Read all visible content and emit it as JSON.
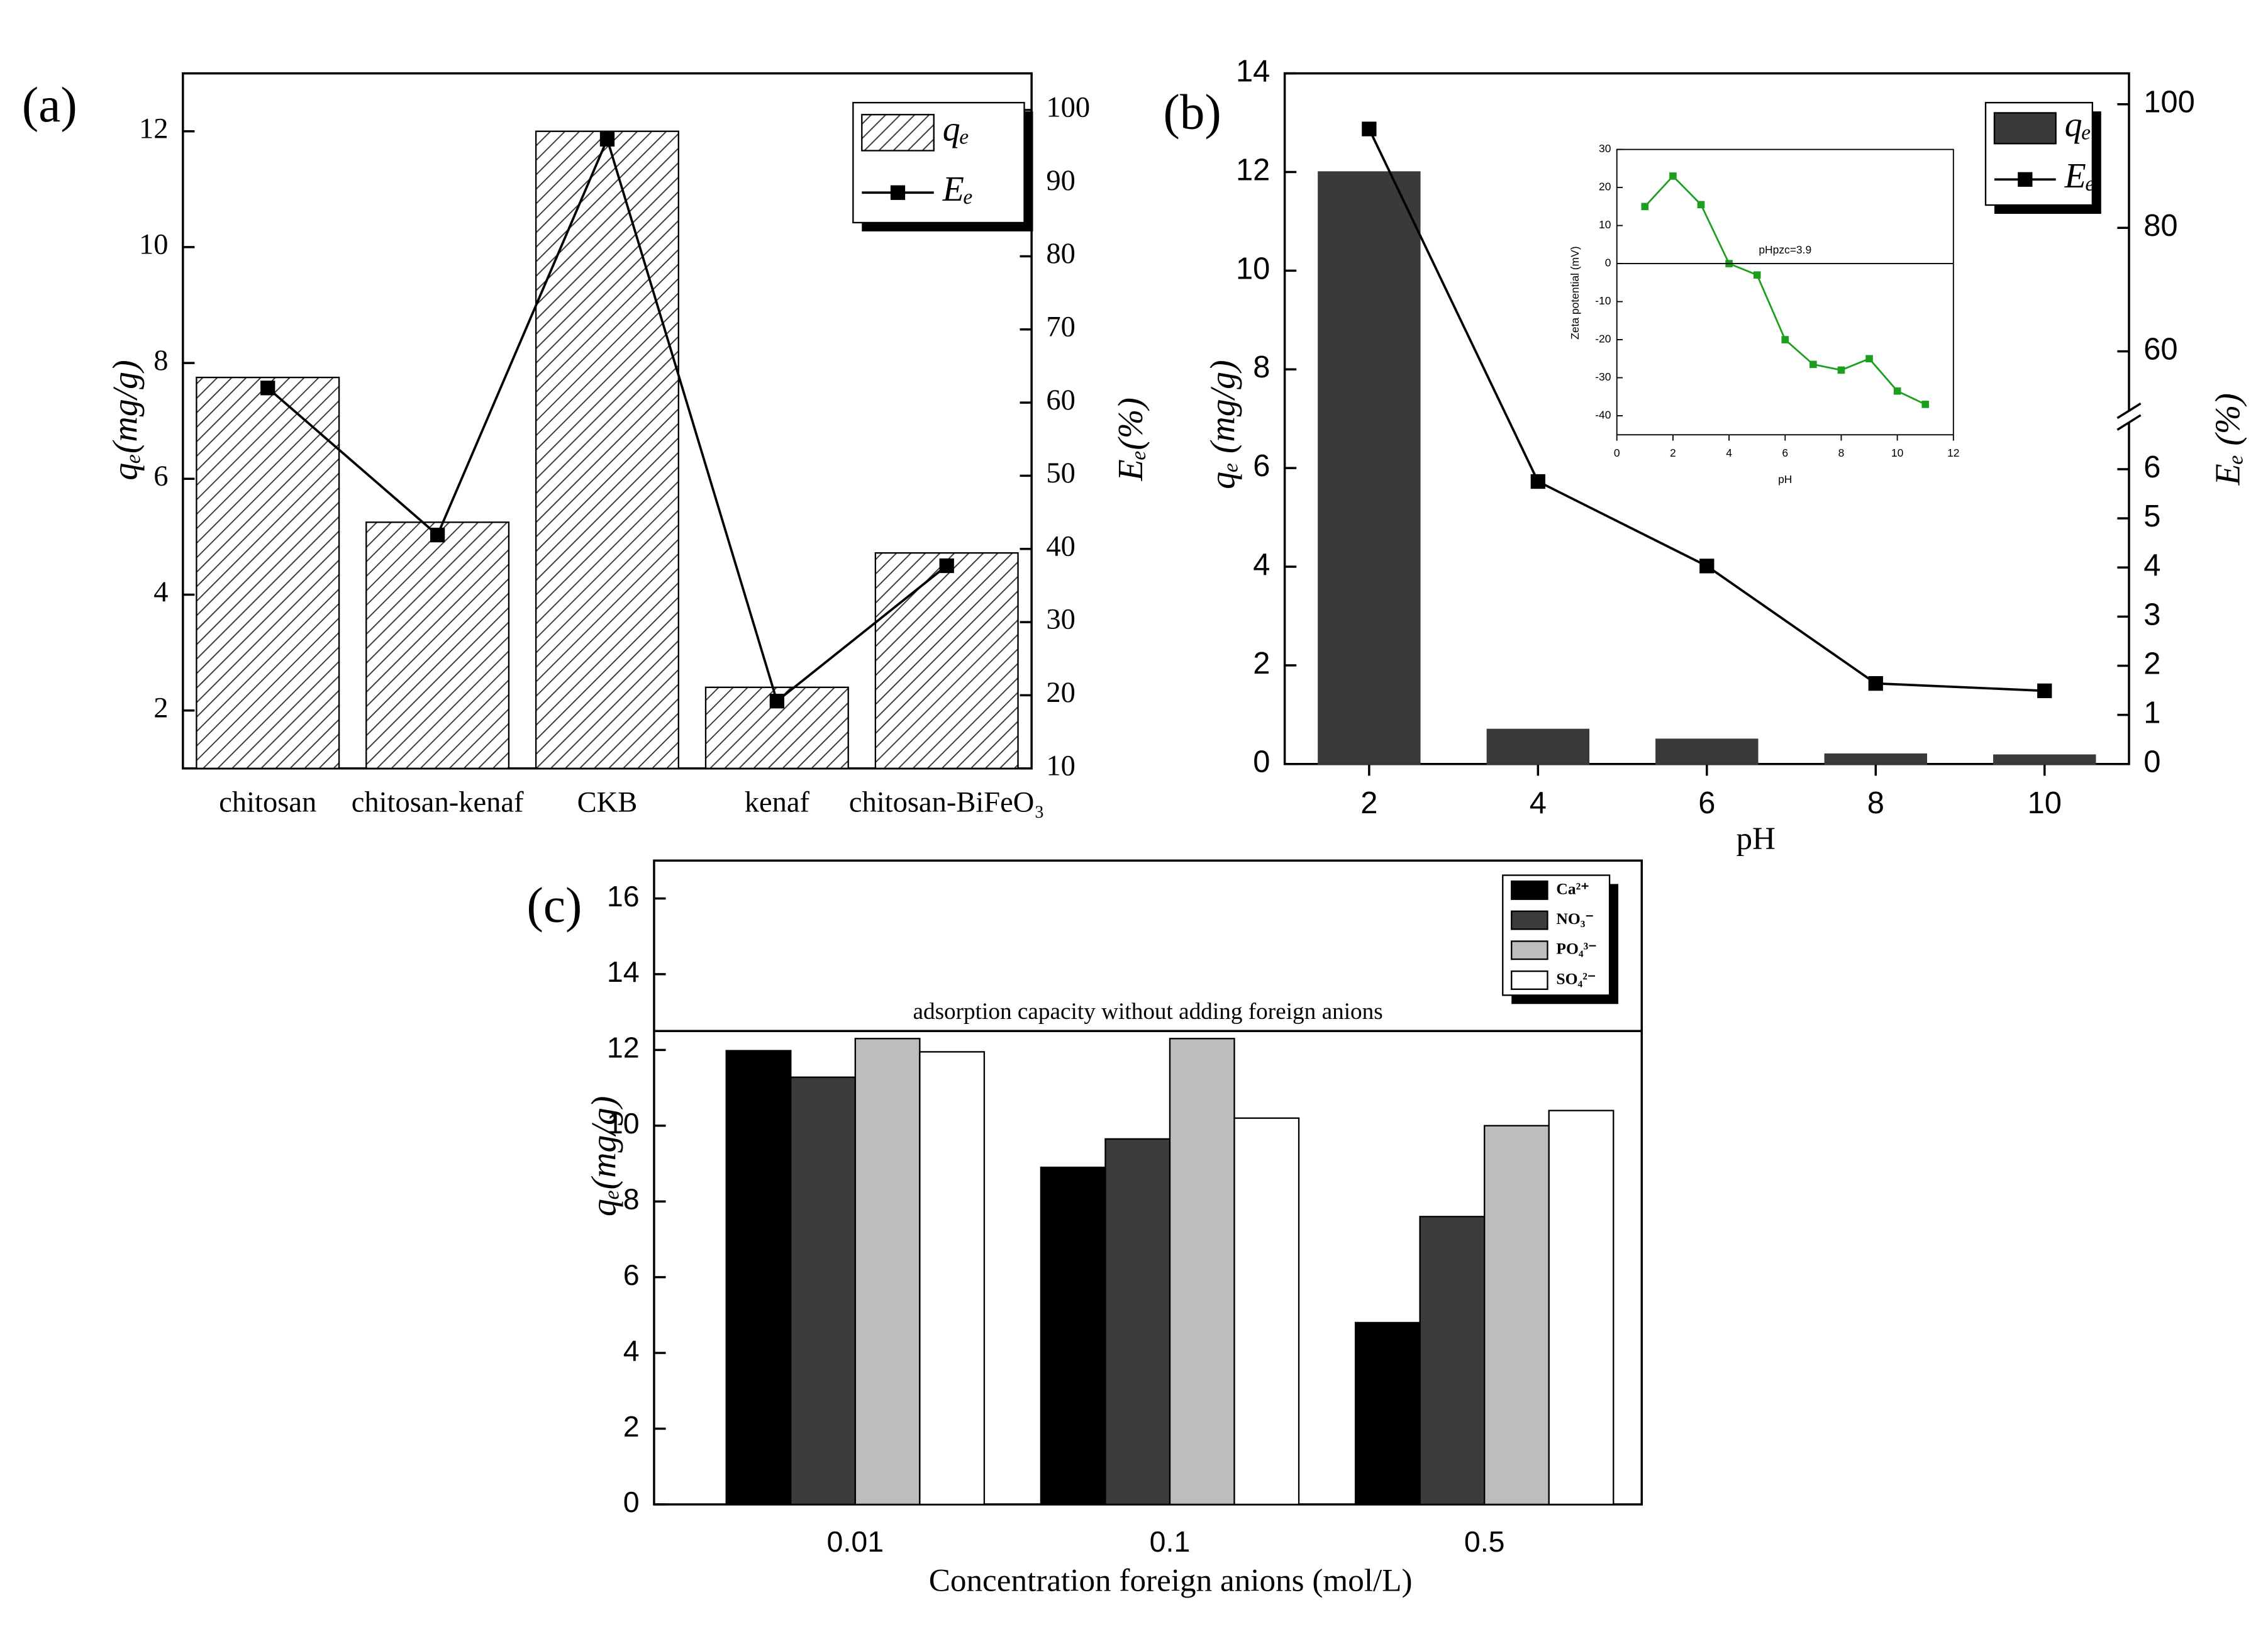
{
  "chart_data": [
    {
      "type": "bar",
      "label": "(a)",
      "categories": [
        "chitosan",
        "chitosan-kenaf",
        "CKB",
        "kenaf",
        "chitosan-BiFeO₃"
      ],
      "series": [
        {
          "name": "qₑ",
          "type": "bar",
          "color": "#ffffff",
          "pattern": "hatch",
          "values": [
            7.75,
            5.25,
            12.0,
            2.4,
            4.72
          ]
        },
        {
          "name": "Eₑ",
          "type": "line",
          "axis": "y2",
          "color": "#000000",
          "values": [
            62,
            41.9,
            96,
            19.2,
            37.7
          ]
        }
      ],
      "ylabel": "qₑ(mg/g)",
      "y2label": "Eₑ(%)",
      "ylim": [
        1,
        13
      ],
      "yticks": [
        2,
        4,
        6,
        8,
        10,
        12
      ],
      "y2lim": [
        10,
        105
      ],
      "y2ticks": [
        10,
        20,
        30,
        40,
        50,
        60,
        70,
        80,
        90,
        100
      ],
      "legend": "upper right"
    },
    {
      "type": "bar",
      "label": "(b)",
      "x": [
        2,
        4,
        6,
        8,
        10
      ],
      "xlim": [
        1,
        11
      ],
      "xticks": [
        2,
        4,
        6,
        8,
        10
      ],
      "xlabel": "pH",
      "series": [
        {
          "name": "qₑ",
          "type": "bar",
          "color": "#3a3a3a",
          "values": [
            12.0,
            0.7,
            0.5,
            0.2,
            0.18
          ]
        },
        {
          "name": "Eₑ",
          "type": "line",
          "axis": "y2",
          "color": "#000000",
          "values": [
            96,
            5.75,
            4.03,
            1.64,
            1.49
          ]
        }
      ],
      "ylabel": "qₑ (mg/g)",
      "y2label": "Eₑ (%)",
      "ylim": [
        0,
        14
      ],
      "yticks": [
        0,
        2,
        4,
        6,
        8,
        10,
        12,
        14
      ],
      "y2_segments": [
        {
          "lim": [
            0,
            7
          ],
          "ticks": [
            0,
            1,
            2,
            3,
            4,
            5,
            6
          ]
        },
        {
          "lim": [
            50,
            105
          ],
          "ticks": [
            60,
            80,
            100
          ]
        }
      ],
      "legend": "upper right"
    },
    {
      "type": "line",
      "x": [
        1,
        2,
        3,
        4,
        5,
        6,
        7,
        8,
        9,
        10,
        11
      ],
      "xlim": [
        0,
        12
      ],
      "xticks": [
        0,
        2,
        4,
        6,
        8,
        10,
        12
      ],
      "xlabel": "pH",
      "series": [
        {
          "color": "#1e9e1e",
          "values": [
            15,
            23,
            15.5,
            0,
            -3,
            -20,
            -26.5,
            -28,
            -25,
            -33.5,
            -37
          ]
        }
      ],
      "ylabel": "Zeta potential (mV)",
      "ylim": [
        -45,
        30
      ],
      "yticks": [
        30,
        20,
        10,
        0,
        -10,
        -20,
        -30,
        -40
      ],
      "hline": 0,
      "annotation": "pHpzc=3.9",
      "annotation_color": "#b040d0"
    },
    {
      "type": "bar",
      "label": "(c)",
      "categories": [
        "0.01",
        "0.1",
        "0.5"
      ],
      "xlabel": "Concentration foreign anions (mol/L)",
      "series": [
        {
          "name": "Ca²⁺",
          "type": "bar",
          "color": "#000000",
          "values": [
            11.98,
            8.9,
            4.8
          ]
        },
        {
          "name": "NO₃⁻",
          "type": "bar",
          "color": "#3c3c3c",
          "values": [
            11.28,
            9.65,
            7.6
          ]
        },
        {
          "name": "PO₄³⁻",
          "type": "bar",
          "color": "#bdbdbd",
          "values": [
            12.3,
            12.3,
            10.0
          ]
        },
        {
          "name": "SO₄²⁻",
          "type": "bar",
          "color": "#ffffff",
          "values": [
            11.95,
            10.2,
            10.4
          ]
        }
      ],
      "ylabel": "qₑ(mg/g)",
      "ylim": [
        0,
        17
      ],
      "yticks": [
        0,
        2,
        4,
        6,
        8,
        10,
        12,
        14,
        16
      ],
      "reference": {
        "value": 12.5,
        "label": "adsorption capacity without adding foreign anions"
      },
      "legend": "upper right"
    }
  ]
}
